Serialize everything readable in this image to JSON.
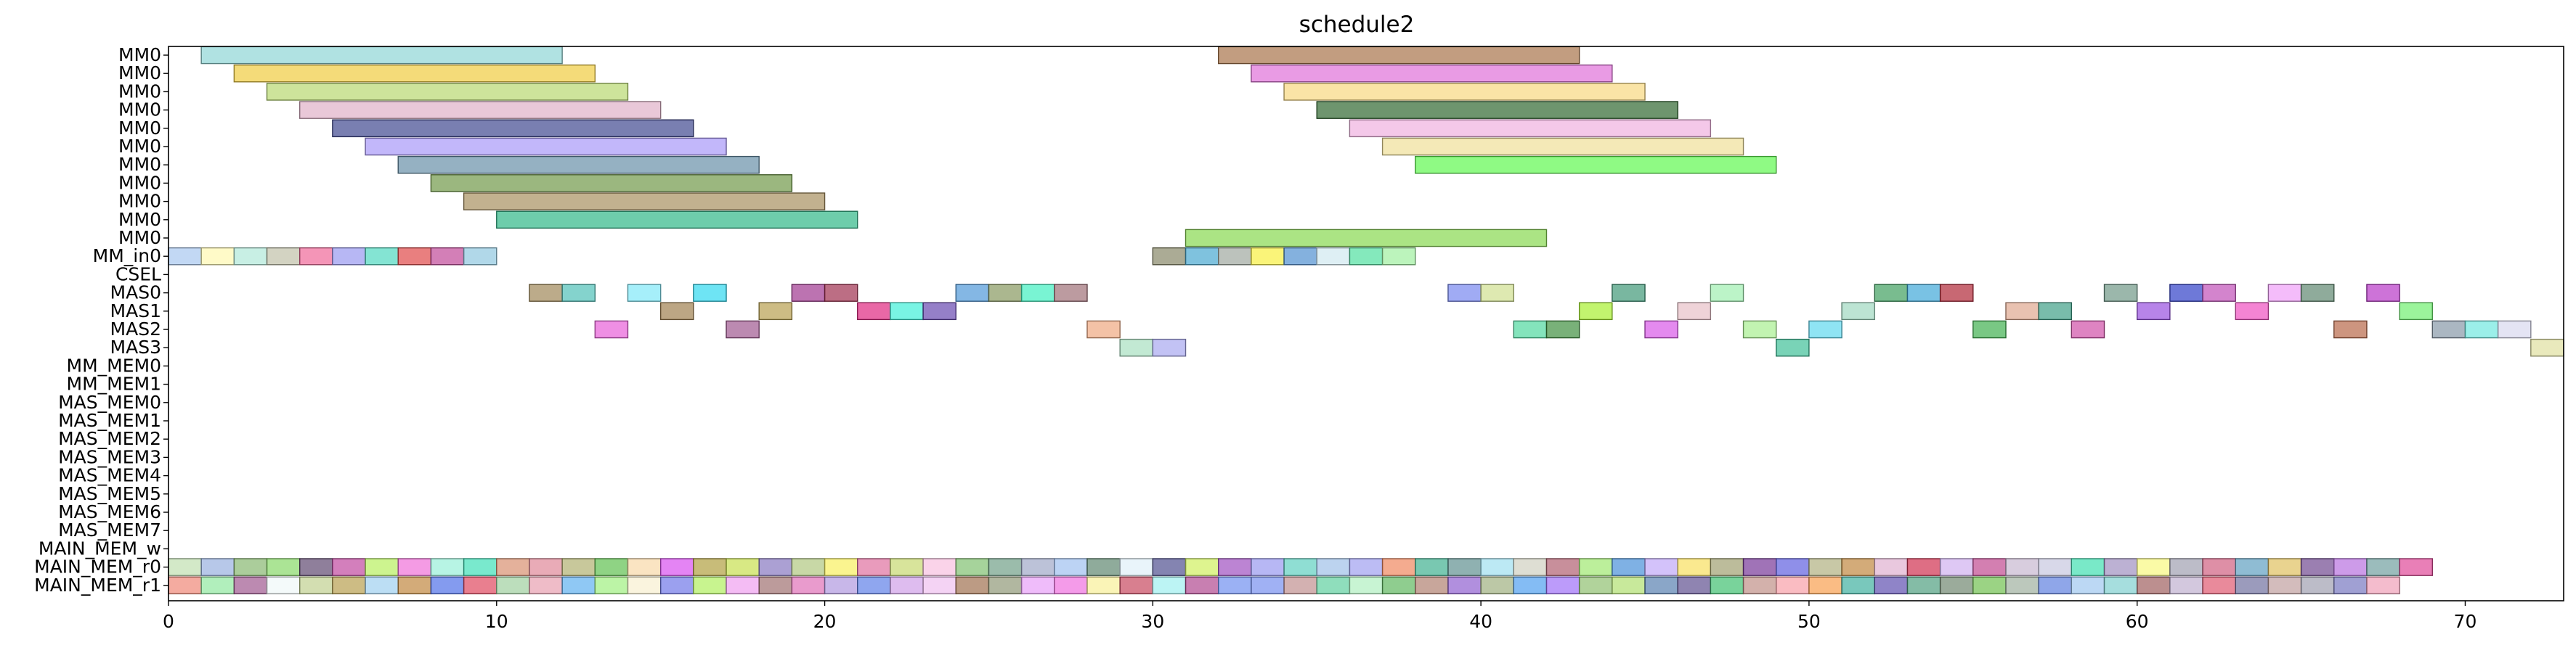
{
  "chart_data": {
    "type": "gantt",
    "title": "schedule2",
    "xlabel": "",
    "ylabel": "",
    "xlim": [
      0,
      73
    ],
    "xticks": [
      0,
      10,
      20,
      30,
      40,
      50,
      60,
      70
    ],
    "grid": false,
    "legend": "none",
    "rows": [
      "MM0",
      "MM0",
      "MM0",
      "MM0",
      "MM0",
      "MM0",
      "MM0",
      "MM0",
      "MM0",
      "MM0",
      "MM0",
      "MM_in0",
      "CSEL",
      "MAS0",
      "MAS1",
      "MAS2",
      "MAS3",
      "MM_MEM0",
      "MM_MEM1",
      "MAS_MEM0",
      "MAS_MEM1",
      "MAS_MEM2",
      "MAS_MEM3",
      "MAS_MEM4",
      "MAS_MEM5",
      "MAS_MEM6",
      "MAS_MEM7",
      "MAIN_MEM_w",
      "MAIN_MEM_r0",
      "MAIN_MEM_r1"
    ],
    "tasks": [
      {
        "row": 0,
        "start": 1,
        "end": 12,
        "color": "#8fd6d6"
      },
      {
        "row": 0,
        "start": 32,
        "end": 43,
        "color": "#a8744a"
      },
      {
        "row": 1,
        "start": 2,
        "end": 13,
        "color": "#f0cc40"
      },
      {
        "row": 1,
        "start": 33,
        "end": 44,
        "color": "#e070d8"
      },
      {
        "row": 2,
        "start": 3,
        "end": 14,
        "color": "#b8d870"
      },
      {
        "row": 2,
        "start": 34,
        "end": 45,
        "color": "#f8d880"
      },
      {
        "row": 3,
        "start": 4,
        "end": 15,
        "color": "#e0b0c8"
      },
      {
        "row": 3,
        "start": 35,
        "end": 46,
        "color": "#306830"
      },
      {
        "row": 4,
        "start": 5,
        "end": 16,
        "color": "#404890"
      },
      {
        "row": 4,
        "start": 36,
        "end": 47,
        "color": "#f0b0e0"
      },
      {
        "row": 5,
        "start": 6,
        "end": 17,
        "color": "#a898f8"
      },
      {
        "row": 5,
        "start": 37,
        "end": 48,
        "color": "#f0e098"
      },
      {
        "row": 6,
        "start": 7,
        "end": 18,
        "color": "#6890a8"
      },
      {
        "row": 6,
        "start": 38,
        "end": 49,
        "color": "#60f850"
      },
      {
        "row": 7,
        "start": 8,
        "end": 19,
        "color": "#709848"
      },
      {
        "row": 8,
        "start": 9,
        "end": 20,
        "color": "#a89060"
      },
      {
        "row": 9,
        "start": 10,
        "end": 21,
        "color": "#30b888"
      },
      {
        "row": 10,
        "start": 31,
        "end": 42,
        "color": "#88d850"
      },
      {
        "row": 11,
        "start": 0,
        "end": 1,
        "color": "#a8c8f0"
      },
      {
        "row": 11,
        "start": 1,
        "end": 2,
        "color": "#fff8b0"
      },
      {
        "row": 11,
        "start": 2,
        "end": 3,
        "color": "#b0e8d8"
      },
      {
        "row": 11,
        "start": 3,
        "end": 4,
        "color": "#c0c0a8"
      },
      {
        "row": 11,
        "start": 4,
        "end": 5,
        "color": "#f06898"
      },
      {
        "row": 11,
        "start": 5,
        "end": 6,
        "color": "#9898f0"
      },
      {
        "row": 11,
        "start": 6,
        "end": 7,
        "color": "#50d8c0"
      },
      {
        "row": 11,
        "start": 7,
        "end": 8,
        "color": "#e04848"
      },
      {
        "row": 11,
        "start": 8,
        "end": 9,
        "color": "#c04898"
      },
      {
        "row": 11,
        "start": 9,
        "end": 10,
        "color": "#90c8e0"
      },
      {
        "row": 11,
        "start": 30,
        "end": 31,
        "color": "#888868"
      },
      {
        "row": 11,
        "start": 31,
        "end": 32,
        "color": "#48a8d0"
      },
      {
        "row": 11,
        "start": 32,
        "end": 33,
        "color": "#a0a8a0"
      },
      {
        "row": 11,
        "start": 33,
        "end": 34,
        "color": "#f8f040"
      },
      {
        "row": 11,
        "start": 34,
        "end": 35,
        "color": "#5090d0"
      },
      {
        "row": 11,
        "start": 35,
        "end": 36,
        "color": "#d0e8f0"
      },
      {
        "row": 11,
        "start": 36,
        "end": 37,
        "color": "#50e0a0"
      },
      {
        "row": 11,
        "start": 37,
        "end": 38,
        "color": "#a0f0a0"
      },
      {
        "row": 13,
        "start": 11,
        "end": 12,
        "color": "#a08858"
      },
      {
        "row": 13,
        "start": 12,
        "end": 13,
        "color": "#50c0b8"
      },
      {
        "row": 13,
        "start": 14,
        "end": 15,
        "color": "#80e8f8"
      },
      {
        "row": 13,
        "start": 16,
        "end": 17,
        "color": "#30d8f0"
      },
      {
        "row": 13,
        "start": 19,
        "end": 20,
        "color": "#a03890"
      },
      {
        "row": 13,
        "start": 20,
        "end": 21,
        "color": "#a03050"
      },
      {
        "row": 13,
        "start": 24,
        "end": 25,
        "color": "#5098d8"
      },
      {
        "row": 13,
        "start": 25,
        "end": 26,
        "color": "#889860"
      },
      {
        "row": 13,
        "start": 26,
        "end": 27,
        "color": "#40f0c0"
      },
      {
        "row": 13,
        "start": 27,
        "end": 28,
        "color": "#a07078"
      },
      {
        "row": 13,
        "start": 39,
        "end": 40,
        "color": "#7888f0"
      },
      {
        "row": 13,
        "start": 40,
        "end": 41,
        "color": "#d0e090"
      },
      {
        "row": 13,
        "start": 44,
        "end": 45,
        "color": "#409878"
      },
      {
        "row": 13,
        "start": 47,
        "end": 48,
        "color": "#a0f0b0"
      },
      {
        "row": 13,
        "start": 52,
        "end": 53,
        "color": "#40a060"
      },
      {
        "row": 13,
        "start": 53,
        "end": 54,
        "color": "#40a8d8"
      },
      {
        "row": 13,
        "start": 54,
        "end": 55,
        "color": "#b02838"
      },
      {
        "row": 13,
        "start": 59,
        "end": 60,
        "color": "#709888"
      },
      {
        "row": 13,
        "start": 61,
        "end": 62,
        "color": "#3040c8"
      },
      {
        "row": 13,
        "start": 62,
        "end": 63,
        "color": "#c050b8"
      },
      {
        "row": 13,
        "start": 64,
        "end": 65,
        "color": "#f0a0f8"
      },
      {
        "row": 13,
        "start": 65,
        "end": 66,
        "color": "#608870"
      },
      {
        "row": 13,
        "start": 67,
        "end": 68,
        "color": "#b838c8"
      },
      {
        "row": 14,
        "start": 15,
        "end": 16,
        "color": "#a08050"
      },
      {
        "row": 14,
        "start": 18,
        "end": 19,
        "color": "#b8a050"
      },
      {
        "row": 14,
        "start": 21,
        "end": 22,
        "color": "#e02880"
      },
      {
        "row": 14,
        "start": 22,
        "end": 23,
        "color": "#40f0d8"
      },
      {
        "row": 14,
        "start": 23,
        "end": 24,
        "color": "#6848b0"
      },
      {
        "row": 14,
        "start": 43,
        "end": 44,
        "color": "#a8f030"
      },
      {
        "row": 14,
        "start": 46,
        "end": 47,
        "color": "#e8c0c8"
      },
      {
        "row": 14,
        "start": 51,
        "end": 52,
        "color": "#a0d8c0"
      },
      {
        "row": 14,
        "start": 56,
        "end": 57,
        "color": "#e0a890"
      },
      {
        "row": 14,
        "start": 57,
        "end": 58,
        "color": "#40a088"
      },
      {
        "row": 14,
        "start": 60,
        "end": 61,
        "color": "#9850e0"
      },
      {
        "row": 14,
        "start": 63,
        "end": 64,
        "color": "#f050c0"
      },
      {
        "row": 14,
        "start": 68,
        "end": 69,
        "color": "#70f070"
      },
      {
        "row": 15,
        "start": 13,
        "end": 14,
        "color": "#e860d8"
      },
      {
        "row": 15,
        "start": 17,
        "end": 18,
        "color": "#a05890"
      },
      {
        "row": 15,
        "start": 28,
        "end": 29,
        "color": "#f0a880"
      },
      {
        "row": 15,
        "start": 41,
        "end": 42,
        "color": "#50d8a0"
      },
      {
        "row": 15,
        "start": 42,
        "end": 43,
        "color": "#409040"
      },
      {
        "row": 15,
        "start": 45,
        "end": 46,
        "color": "#d858e8"
      },
      {
        "row": 15,
        "start": 48,
        "end": 49,
        "color": "#a8f090"
      },
      {
        "row": 15,
        "start": 50,
        "end": 51,
        "color": "#60d8f0"
      },
      {
        "row": 15,
        "start": 55,
        "end": 56,
        "color": "#40b050"
      },
      {
        "row": 15,
        "start": 58,
        "end": 59,
        "color": "#d050a8"
      },
      {
        "row": 15,
        "start": 66,
        "end": 67,
        "color": "#b86848"
      },
      {
        "row": 15,
        "start": 69,
        "end": 70,
        "color": "#8898a8"
      },
      {
        "row": 15,
        "start": 70,
        "end": 71,
        "color": "#70e8e0"
      },
      {
        "row": 15,
        "start": 71,
        "end": 72,
        "color": "#d8d8f0"
      },
      {
        "row": 16,
        "start": 29,
        "end": 30,
        "color": "#a8e0c0"
      },
      {
        "row": 16,
        "start": 30,
        "end": 31,
        "color": "#a8a8f0"
      },
      {
        "row": 16,
        "start": 49,
        "end": 50,
        "color": "#40c098"
      },
      {
        "row": 16,
        "start": 72,
        "end": 73,
        "color": "#e0e0a0"
      }
    ],
    "main_mem_r0_colors": [
      "#c0e0b0",
      "#98b0e0",
      "#88b870",
      "#88d868",
      "#604870",
      "#c048a0",
      "#b8f060",
      "#f070d8",
      "#98f0d8",
      "#40e0b8",
      "#d89070",
      "#e08898",
      "#b0b070",
      "#60c050",
      "#f8d8a8",
      "#d850f0",
      "#b0a040",
      "#c8e050",
      "#8878c0",
      "#b0c880",
      "#f8f060",
      "#e070a0",
      "#c8d870",
      "#f8c0e0",
      "#80c070",
      "#70a088",
      "#a0a8c8",
      "#a0c0f0",
      "#608870",
      "#e0f0f8",
      "#505090",
      "#d0f060",
      "#a050c0",
      "#9898f0",
      "#60d0c0",
      "#a0c0e8",
      "#a0a0f0",
      "#f08860",
      "#40b090",
      "#609090",
      "#a0e0f0",
      "#d0d0c0",
      "#b06070",
      "#a0e870",
      "#4890d8",
      "#c0a8f8",
      "#f8e060",
      "#a0a070",
      "#783898",
      "#6060e0",
      "#b0b080",
      "#c08840",
      "#e0b0d0",
      "#d03050",
      "#d0b0f0",
      "#c04890",
      "#c8b8d0",
      "#c8c8e0",
      "#40e0b0",
      "#a090c0",
      "#f8f880",
      "#a0a0b0",
      "#d06080",
      "#60a0c0",
      "#e0c060",
      "#704890",
      "#b870e0",
      "#70a0a0",
      "#e04898"
    ],
    "main_mem_r1_colors": [
      "#f08878",
      "#90e8a0",
      "#a05890",
      "#f0f8f8",
      "#c0d090",
      "#b8a050",
      "#a0d0f0",
      "#c08840",
      "#5070e8",
      "#e04860",
      "#a0d0a0",
      "#e8a0b0",
      "#60b0f0",
      "#a0f080",
      "#f8f0d0",
      "#7078e8",
      "#b0f060",
      "#f0a0f0",
      "#a07070",
      "#e070b8",
      "#b098e0",
      "#6080e8",
      "#d0a0e8",
      "#f0c0f0",
      "#a07050",
      "#909878",
      "#e8a0f8",
      "#f070e0",
      "#f8f098",
      "#c84860",
      "#a0f0f0",
      "#b04890",
      "#7090f0",
      "#7890f0",
      "#c09090",
      "#60d0a0",
      "#b0f0c0",
      "#60b860",
      "#b08070",
      "#9060d0",
      "#a0b080",
      "#50a0f0",
      "#a070f8",
      "#90c070",
      "#b0e070",
      "#5880b0",
      "#605090",
      "#40c070",
      "#c09088",
      "#f8a0a8",
      "#f8a050",
      "#40b0a0",
      "#6050b0",
      "#50a080",
      "#708870",
      "#70c050",
      "#a0b0a0",
      "#6080e0",
      "#a0c8f0",
      "#80d0d0",
      "#a06060",
      "#c0b0d0",
      "#e05870",
      "#7070a0",
      "#c0a0a0",
      "#a0a0b0",
      "#7878c0",
      "#f0a0b8"
    ]
  }
}
